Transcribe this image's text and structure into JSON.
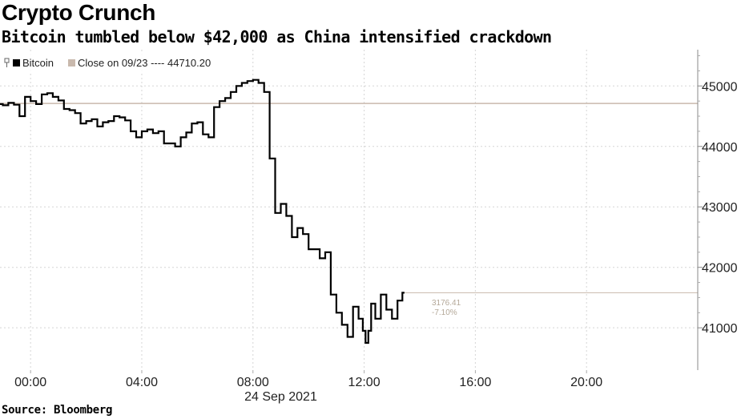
{
  "header": {
    "title": "Crypto Crunch",
    "subtitle": "Bitcoin tumbled below $42,000 as China intensified crackdown"
  },
  "footer": {
    "source": "Source: Bloomberg"
  },
  "colors": {
    "series": "#000000",
    "reference": "#c9b9ad",
    "callout_text": "#b4a898",
    "grid": "#d5d5d5"
  },
  "legend": {
    "series_label": "Bitcoin",
    "reference_label": "Close on 09/23 ---- 44710.20"
  },
  "callout": {
    "last_value": "3176.41",
    "change": "-7.10%"
  },
  "chart_data": {
    "type": "line",
    "title": "Crypto Crunch",
    "subtitle": "Bitcoin tumbled below $42,000 as China intensified crackdown",
    "date_label": "24 Sep 2021",
    "x_unit": "hours",
    "xlim": [
      -1.1,
      24
    ],
    "ylim": [
      40300,
      45600
    ],
    "x_ticks": [
      0,
      4,
      8,
      12,
      16,
      20
    ],
    "x_tick_labels": [
      "00:00",
      "04:00",
      "08:00",
      "12:00",
      "16:00",
      "20:00"
    ],
    "y_ticks": [
      41000,
      42000,
      43000,
      44000,
      45000
    ],
    "y_tick_labels": [
      "41000",
      "42000",
      "43000",
      "44000",
      "45000"
    ],
    "y_axis_side": "right",
    "grid": true,
    "legend_position": "top-left",
    "reference_line": {
      "label": "Close on 09/23",
      "value": 44710.2
    },
    "series": [
      {
        "name": "Bitcoin",
        "x": [
          -1.1,
          -0.9,
          -0.7,
          -0.5,
          -0.3,
          -0.1,
          0.1,
          0.3,
          0.5,
          0.7,
          0.9,
          1.1,
          1.3,
          1.5,
          1.7,
          1.9,
          2.1,
          2.3,
          2.5,
          2.7,
          2.9,
          3.1,
          3.3,
          3.5,
          3.7,
          3.9,
          4.1,
          4.3,
          4.5,
          4.7,
          4.9,
          5.1,
          5.3,
          5.5,
          5.7,
          5.9,
          6.1,
          6.3,
          6.5,
          6.7,
          6.9,
          7.1,
          7.3,
          7.5,
          7.7,
          7.9,
          8.1,
          8.3,
          8.5,
          8.7,
          8.9,
          9.1,
          9.3,
          9.5,
          9.7,
          9.9,
          10.1,
          10.3,
          10.5,
          10.7,
          10.9,
          11.1,
          11.3,
          11.5,
          11.7,
          11.9,
          12.0,
          12.1,
          12.2,
          12.3,
          12.5,
          12.7,
          12.9,
          13.1,
          13.3,
          13.45
        ],
        "y": [
          44700,
          44680,
          44720,
          44690,
          44500,
          44820,
          44750,
          44700,
          44860,
          44880,
          44820,
          44760,
          44620,
          44600,
          44550,
          44380,
          44420,
          44450,
          44330,
          44400,
          44420,
          44500,
          44480,
          44430,
          44250,
          44150,
          44250,
          44280,
          44220,
          44250,
          44050,
          44050,
          44000,
          44150,
          44230,
          44380,
          44400,
          44200,
          44150,
          44650,
          44750,
          44800,
          44900,
          45000,
          45050,
          45080,
          45100,
          45050,
          44900,
          43800,
          42900,
          43050,
          42850,
          42500,
          42650,
          42550,
          42300,
          42300,
          42150,
          42250,
          41550,
          41250,
          41050,
          40850,
          41350,
          41150,
          40950,
          40750,
          40950,
          41400,
          41150,
          41550,
          41300,
          41150,
          41450,
          41580
        ]
      }
    ]
  }
}
